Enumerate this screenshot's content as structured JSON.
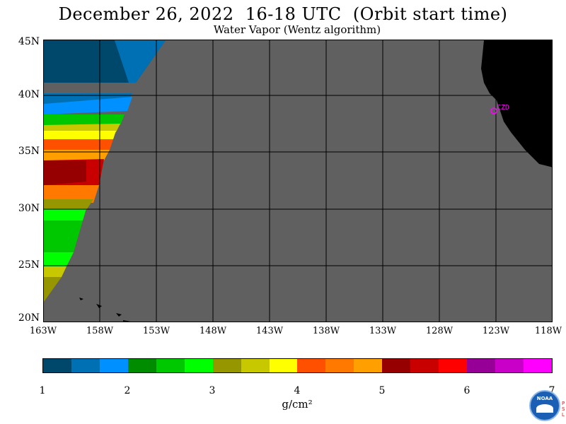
{
  "header": {
    "title": "December 26, 2022  16-18 UTC  (Orbit start time)",
    "subtitle": "Water Vapor (Wentz algorithm)"
  },
  "map": {
    "lat_labels": [
      "45N",
      "40N",
      "35N",
      "30N",
      "25N",
      "20N"
    ],
    "lon_labels": [
      "163W",
      "158W",
      "153W",
      "148W",
      "143W",
      "138W",
      "133W",
      "128W",
      "123W",
      "118W"
    ],
    "station_label": "CZD",
    "no_data_color": "#606060",
    "land_color": "#000000",
    "marker_color": "#ff00ff"
  },
  "colorbar": {
    "colors": [
      "#00486b",
      "#0070b4",
      "#0090ff",
      "#008c00",
      "#00c800",
      "#00ff00",
      "#969600",
      "#c8c800",
      "#ffff00",
      "#ff5000",
      "#ff7800",
      "#ffa000",
      "#960000",
      "#c80000",
      "#ff0000",
      "#960096",
      "#c800c8",
      "#ff00ff"
    ],
    "ticks": [
      "1",
      "2",
      "3",
      "4",
      "5",
      "6",
      "7"
    ],
    "unit": "g/cm²"
  },
  "logo": {
    "text": "NOAA",
    "side_text": "PSL"
  }
}
